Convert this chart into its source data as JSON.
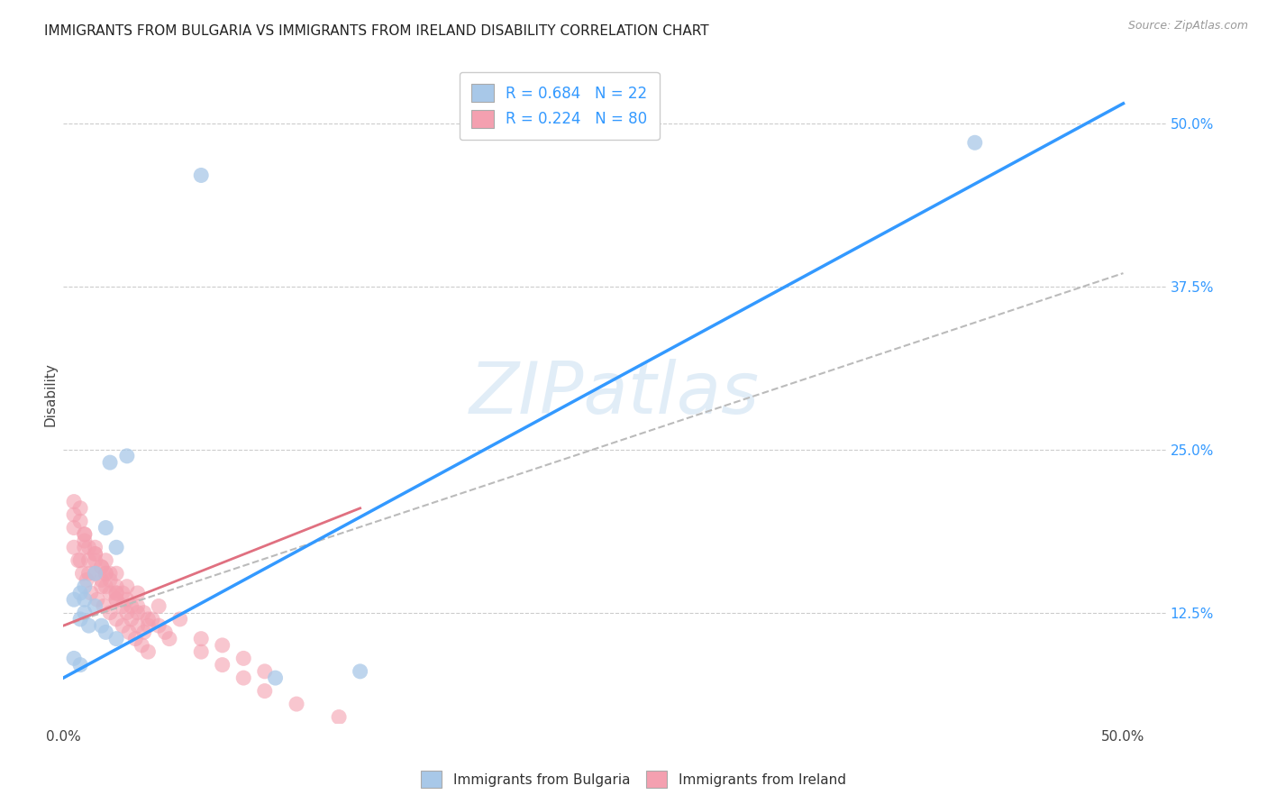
{
  "title": "IMMIGRANTS FROM BULGARIA VS IMMIGRANTS FROM IRELAND DISABILITY CORRELATION CHART",
  "source": "Source: ZipAtlas.com",
  "ylabel": "Disability",
  "y_ticks_right": [
    0.125,
    0.25,
    0.375,
    0.5
  ],
  "y_tick_labels_right": [
    "12.5%",
    "25.0%",
    "37.5%",
    "50.0%"
  ],
  "xlim": [
    0.0,
    0.52
  ],
  "ylim": [
    0.04,
    0.545
  ],
  "legend_blue_label": "R = 0.684   N = 22",
  "legend_pink_label": "R = 0.224   N = 80",
  "bottom_legend_blue": "Immigrants from Bulgaria",
  "bottom_legend_pink": "Immigrants from Ireland",
  "blue_color": "#a8c8e8",
  "blue_dark": "#3399ff",
  "pink_color": "#f4a0b0",
  "pink_solid": "#e07080",
  "gray_dashed": "#bbbbbb",
  "watermark_color": "#c5dcf0",
  "blue_scatter_x": [
    0.065,
    0.43,
    0.03,
    0.022,
    0.02,
    0.025,
    0.015,
    0.01,
    0.008,
    0.01,
    0.005,
    0.015,
    0.01,
    0.008,
    0.012,
    0.018,
    0.02,
    0.025,
    0.005,
    0.008,
    0.14,
    0.1
  ],
  "blue_scatter_y": [
    0.46,
    0.485,
    0.245,
    0.24,
    0.19,
    0.175,
    0.155,
    0.145,
    0.14,
    0.135,
    0.135,
    0.13,
    0.125,
    0.12,
    0.115,
    0.115,
    0.11,
    0.105,
    0.09,
    0.085,
    0.08,
    0.075
  ],
  "pink_scatter_x": [
    0.005,
    0.008,
    0.01,
    0.01,
    0.012,
    0.015,
    0.015,
    0.018,
    0.02,
    0.02,
    0.022,
    0.025,
    0.025,
    0.028,
    0.03,
    0.032,
    0.035,
    0.038,
    0.04,
    0.042,
    0.045,
    0.048,
    0.005,
    0.008,
    0.01,
    0.012,
    0.015,
    0.018,
    0.02,
    0.022,
    0.025,
    0.028,
    0.03,
    0.032,
    0.035,
    0.038,
    0.005,
    0.007,
    0.009,
    0.011,
    0.013,
    0.016,
    0.019,
    0.022,
    0.025,
    0.028,
    0.031,
    0.034,
    0.037,
    0.04,
    0.01,
    0.015,
    0.02,
    0.025,
    0.03,
    0.005,
    0.008,
    0.012,
    0.018,
    0.025,
    0.035,
    0.04,
    0.05,
    0.065,
    0.075,
    0.085,
    0.095,
    0.11,
    0.13,
    0.015,
    0.025,
    0.018,
    0.022,
    0.035,
    0.045,
    0.055,
    0.065,
    0.075,
    0.085,
    0.095
  ],
  "pink_scatter_y": [
    0.2,
    0.195,
    0.185,
    0.18,
    0.175,
    0.17,
    0.165,
    0.16,
    0.155,
    0.155,
    0.15,
    0.145,
    0.14,
    0.14,
    0.135,
    0.13,
    0.13,
    0.125,
    0.12,
    0.12,
    0.115,
    0.11,
    0.21,
    0.205,
    0.175,
    0.165,
    0.155,
    0.15,
    0.145,
    0.14,
    0.135,
    0.13,
    0.125,
    0.12,
    0.115,
    0.11,
    0.175,
    0.165,
    0.155,
    0.15,
    0.14,
    0.135,
    0.13,
    0.125,
    0.12,
    0.115,
    0.11,
    0.105,
    0.1,
    0.095,
    0.185,
    0.175,
    0.165,
    0.155,
    0.145,
    0.19,
    0.165,
    0.155,
    0.145,
    0.135,
    0.125,
    0.115,
    0.105,
    0.095,
    0.085,
    0.075,
    0.065,
    0.055,
    0.045,
    0.17,
    0.14,
    0.16,
    0.155,
    0.14,
    0.13,
    0.12,
    0.105,
    0.1,
    0.09,
    0.08
  ],
  "blue_line_x": [
    0.0,
    0.5
  ],
  "blue_line_y": [
    0.075,
    0.515
  ],
  "pink_solid_line_x": [
    0.0,
    0.14
  ],
  "pink_solid_line_y": [
    0.115,
    0.205
  ],
  "gray_dash_line_x": [
    0.0,
    0.5
  ],
  "gray_dash_line_y": [
    0.115,
    0.385
  ],
  "title_fontsize": 11,
  "source_fontsize": 9
}
